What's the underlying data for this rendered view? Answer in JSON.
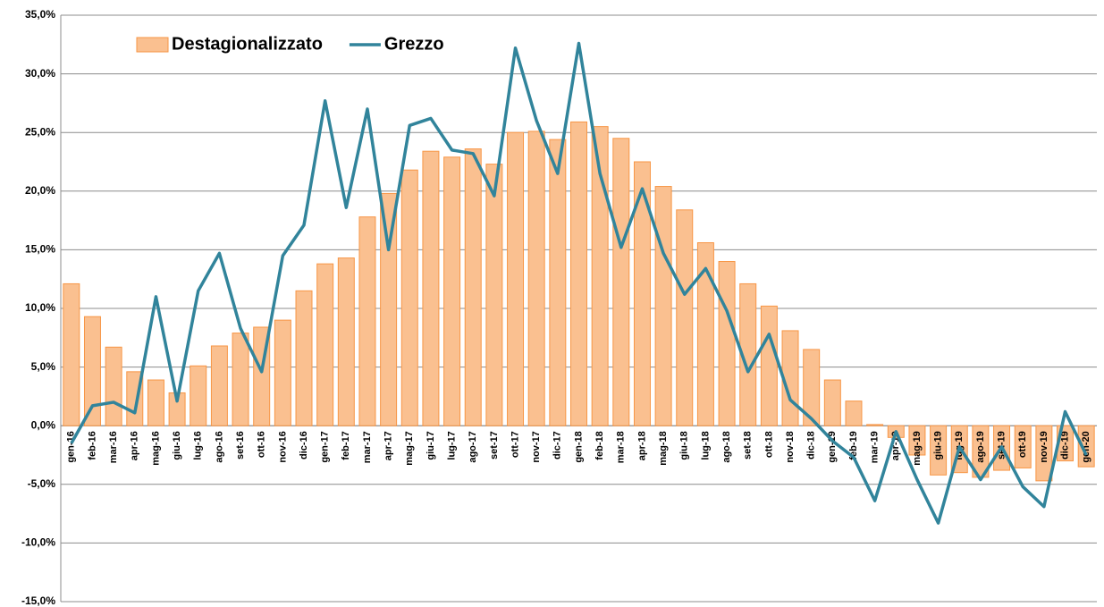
{
  "chart_data": {
    "type": "bar_line",
    "categories": [
      "gen-16",
      "feb-16",
      "mar-16",
      "apr-16",
      "mag-16",
      "giu-16",
      "lug-16",
      "ago-16",
      "set-16",
      "ott-16",
      "nov-16",
      "dic-16",
      "gen-17",
      "feb-17",
      "mar-17",
      "apr-17",
      "mag-17",
      "giu-17",
      "lug-17",
      "ago-17",
      "set-17",
      "ott-17",
      "nov-17",
      "dic-17",
      "gen-18",
      "feb-18",
      "mar-18",
      "apr-18",
      "mag-18",
      "giu-18",
      "lug-18",
      "ago-18",
      "set-18",
      "ott-18",
      "nov-18",
      "dic-18",
      "gen-19",
      "feb-19",
      "mar-19",
      "apr-19",
      "mag-19",
      "giu-19",
      "lug-19",
      "ago-19",
      "set-19",
      "ott-19",
      "nov-19",
      "dic-19",
      "gen-20"
    ],
    "series": [
      {
        "name": "Destagionalizzato",
        "type": "bar",
        "color": "#fac090",
        "values": [
          12.1,
          9.3,
          6.7,
          4.6,
          3.9,
          2.8,
          5.1,
          6.8,
          7.9,
          8.4,
          9.0,
          11.5,
          13.8,
          14.3,
          17.8,
          19.8,
          21.8,
          23.4,
          22.9,
          23.6,
          22.3,
          25.0,
          25.1,
          24.4,
          25.9,
          25.5,
          24.5,
          22.5,
          20.4,
          18.4,
          15.6,
          14.0,
          12.1,
          10.2,
          8.1,
          6.5,
          3.9,
          2.1,
          0.1,
          -1.0,
          -2.5,
          -4.2,
          -4.0,
          -4.4,
          -3.8,
          -3.6,
          -4.7,
          -3.0,
          -3.5
        ]
      },
      {
        "name": "Grezzo",
        "type": "line",
        "color": "#31849b",
        "values": [
          -1.5,
          1.7,
          2.0,
          1.1,
          11.0,
          2.1,
          11.5,
          14.7,
          8.3,
          4.6,
          14.5,
          17.1,
          27.7,
          18.6,
          27.0,
          15.0,
          25.6,
          26.2,
          23.5,
          23.2,
          19.6,
          32.2,
          26.0,
          21.5,
          32.6,
          21.5,
          15.2,
          20.2,
          14.7,
          11.2,
          13.4,
          9.8,
          4.6,
          7.8,
          2.2,
          0.6,
          -1.3,
          -2.7,
          -6.4,
          -0.5,
          -4.6,
          -8.3,
          -1.8,
          -4.6,
          -1.8,
          -5.2,
          -6.9,
          1.2,
          -2.5
        ]
      }
    ],
    "ylim": [
      -15,
      35
    ],
    "yticks": [
      {
        "value": -15,
        "label": "-15,0%"
      },
      {
        "value": -10,
        "label": "-10,0%"
      },
      {
        "value": -5,
        "label": "-5,0%"
      },
      {
        "value": 0,
        "label": "0,0%"
      },
      {
        "value": 5,
        "label": "5,0%"
      },
      {
        "value": 10,
        "label": "10,0%"
      },
      {
        "value": 15,
        "label": "15,0%"
      },
      {
        "value": 20,
        "label": "20,0%"
      },
      {
        "value": 25,
        "label": "25,0%"
      },
      {
        "value": 30,
        "label": "30,0%"
      },
      {
        "value": 35,
        "label": "35,0%"
      }
    ],
    "grid": true,
    "legend": "top-left"
  }
}
